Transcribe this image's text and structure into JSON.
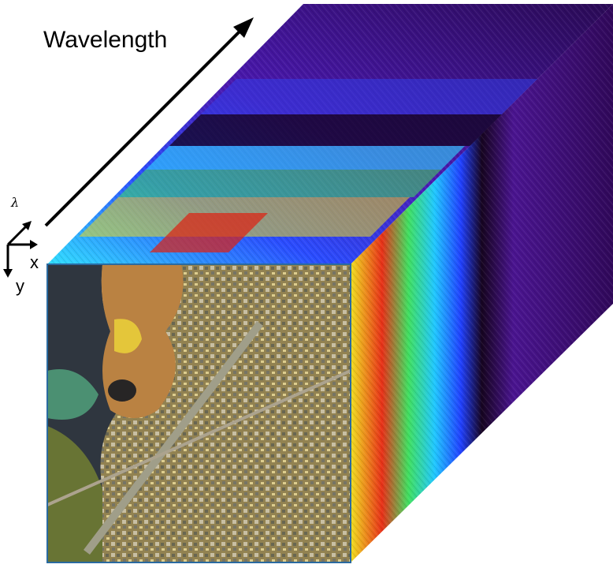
{
  "labels": {
    "wavelength": "Wavelength",
    "lambda": "λ",
    "x": "x",
    "y": "y"
  },
  "colors": {
    "axis_arrow": "#000000",
    "deep_band": "#3a0a6e",
    "deep_band_dark": "#1a0530",
    "band_blue": "#2040ff",
    "band_cyan": "#20d8ff",
    "band_green": "#40e060",
    "band_yellow": "#f0e020",
    "band_red": "#e02010",
    "image_ground": "#7a6a3a",
    "image_water": "#1a2a4a"
  }
}
